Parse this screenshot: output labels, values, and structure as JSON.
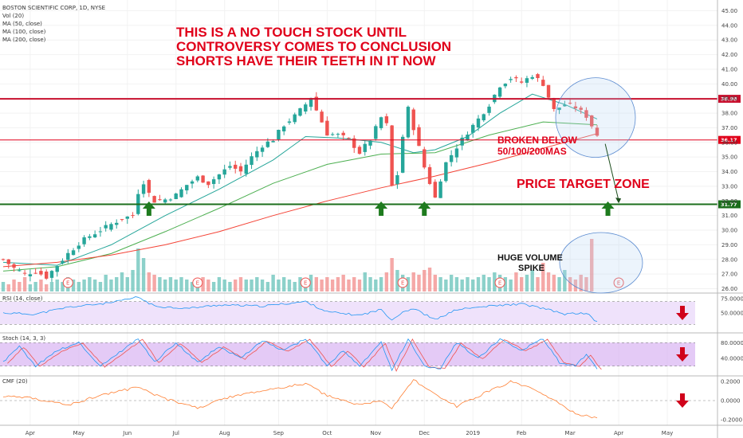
{
  "chart_data": {
    "type": "candlestick",
    "title": "BOSTON SCIENTIFIC CORP, 1D, NYSE",
    "indicators": [
      "Vol (20)",
      "MA (50, close)",
      "MA (100, close)",
      "MA (200, close)"
    ],
    "price_axis": {
      "ticks": [
        45.0,
        44.0,
        43.0,
        42.0,
        41.0,
        40.0,
        39.0,
        38.0,
        37.0,
        36.0,
        35.0,
        34.0,
        33.0,
        32.0,
        31.0,
        30.0,
        29.0,
        28.0,
        27.0,
        26.0
      ],
      "ylim": [
        25.7,
        45.3
      ]
    },
    "time_axis": [
      "Apr",
      "May",
      "Jun",
      "Jul",
      "Aug",
      "Sep",
      "Oct",
      "Nov",
      "Dec",
      "2019",
      "Feb",
      "Mar",
      "Apr",
      "May"
    ],
    "levels": [
      {
        "value": 38.98,
        "label": "38.98",
        "color": "#c8102e"
      },
      {
        "value": 36.17,
        "label": "36.17",
        "color": "#e0001a"
      },
      {
        "value": 31.77,
        "label": "31.77",
        "color": "#1b6e1b"
      }
    ],
    "price_path": [
      [
        0,
        28.0
      ],
      [
        2,
        27.4
      ],
      [
        4,
        27.0
      ],
      [
        6,
        27.2
      ],
      [
        8,
        26.8
      ],
      [
        10,
        27.6
      ],
      [
        12,
        28.4
      ],
      [
        14,
        29.1
      ],
      [
        16,
        29.6
      ],
      [
        18,
        30.0
      ],
      [
        20,
        30.4
      ],
      [
        22,
        30.8
      ],
      [
        24,
        31.0
      ],
      [
        25,
        32.6
      ],
      [
        26,
        33.3
      ],
      [
        27,
        32.5
      ],
      [
        28,
        32.0
      ],
      [
        30,
        32.1
      ],
      [
        32,
        32.4
      ],
      [
        34,
        33.1
      ],
      [
        36,
        33.6
      ],
      [
        38,
        33.2
      ],
      [
        40,
        33.8
      ],
      [
        42,
        34.4
      ],
      [
        44,
        34.0
      ],
      [
        46,
        35.0
      ],
      [
        48,
        35.8
      ],
      [
        50,
        36.2
      ],
      [
        52,
        37.2
      ],
      [
        54,
        37.8
      ],
      [
        56,
        38.6
      ],
      [
        57,
        39.1
      ],
      [
        58,
        38.2
      ],
      [
        59,
        37.4
      ],
      [
        60,
        36.6
      ],
      [
        62,
        36.5
      ],
      [
        64,
        36.2
      ],
      [
        66,
        35.3
      ],
      [
        68,
        36.2
      ],
      [
        70,
        37.7
      ],
      [
        71,
        37.2
      ],
      [
        72,
        33.0
      ],
      [
        73,
        33.8
      ],
      [
        74,
        36.4
      ],
      [
        75,
        38.3
      ],
      [
        76,
        37.0
      ],
      [
        78,
        34.3
      ],
      [
        80,
        32.2
      ],
      [
        81,
        33.5
      ],
      [
        82,
        34.6
      ],
      [
        84,
        35.7
      ],
      [
        86,
        36.7
      ],
      [
        88,
        37.6
      ],
      [
        90,
        38.6
      ],
      [
        92,
        39.9
      ],
      [
        94,
        40.4
      ],
      [
        96,
        40.1
      ],
      [
        98,
        40.6
      ],
      [
        100,
        40.0
      ],
      [
        102,
        38.2
      ],
      [
        104,
        38.6
      ],
      [
        106,
        38.4
      ],
      [
        108,
        37.8
      ],
      [
        110,
        36.5
      ]
    ],
    "ma_50": [
      [
        0,
        27.8
      ],
      [
        10,
        27.6
      ],
      [
        20,
        29.0
      ],
      [
        30,
        31.0
      ],
      [
        40,
        32.8
      ],
      [
        50,
        34.8
      ],
      [
        56,
        36.4
      ],
      [
        62,
        36.3
      ],
      [
        70,
        36.0
      ],
      [
        76,
        35.3
      ],
      [
        80,
        35.5
      ],
      [
        86,
        36.4
      ],
      [
        92,
        38.0
      ],
      [
        98,
        39.3
      ],
      [
        104,
        38.6
      ],
      [
        110,
        37.6
      ]
    ],
    "ma_100": [
      [
        0,
        27.2
      ],
      [
        10,
        27.5
      ],
      [
        20,
        28.4
      ],
      [
        30,
        29.9
      ],
      [
        40,
        31.5
      ],
      [
        50,
        33.2
      ],
      [
        60,
        34.5
      ],
      [
        70,
        35.2
      ],
      [
        80,
        35.3
      ],
      [
        90,
        36.5
      ],
      [
        100,
        37.4
      ],
      [
        110,
        37.2
      ]
    ],
    "ma_200": [
      [
        0,
        27.5
      ],
      [
        10,
        27.8
      ],
      [
        20,
        28.3
      ],
      [
        30,
        29.0
      ],
      [
        40,
        29.9
      ],
      [
        50,
        31.0
      ],
      [
        60,
        32.0
      ],
      [
        70,
        32.9
      ],
      [
        80,
        33.7
      ],
      [
        90,
        34.6
      ],
      [
        100,
        35.6
      ],
      [
        110,
        36.6
      ]
    ],
    "volume": [
      4,
      3,
      5,
      4,
      6,
      3,
      4,
      5,
      3,
      4,
      5,
      4,
      6,
      5,
      4,
      5,
      6,
      5,
      4,
      7,
      5,
      6,
      8,
      6,
      9,
      18,
      14,
      8,
      7,
      6,
      5,
      6,
      5,
      6,
      5,
      4,
      5,
      6,
      5,
      4,
      6,
      5,
      4,
      5,
      6,
      5,
      5,
      6,
      5,
      4,
      7,
      5,
      6,
      5,
      4,
      6,
      5,
      7,
      6,
      5,
      6,
      5,
      6,
      7,
      5,
      6,
      5,
      8,
      6,
      5,
      6,
      8,
      14,
      9,
      7,
      6,
      8,
      7,
      9,
      10,
      7,
      6,
      5,
      7,
      6,
      5,
      6,
      5,
      6,
      7,
      6,
      8,
      7,
      6,
      5,
      8,
      6,
      7,
      9,
      6,
      12,
      8,
      7,
      6,
      9,
      6,
      5,
      7,
      6,
      22
    ],
    "panels": [
      {
        "name": "RSI (14, close)",
        "ticks": [
          "75.0000",
          "50.0000"
        ],
        "ylim": [
          15,
          85
        ],
        "band": [
          30,
          70
        ],
        "values": [
          [
            0,
            50
          ],
          [
            6,
            48
          ],
          [
            12,
            60
          ],
          [
            20,
            68
          ],
          [
            25,
            78
          ],
          [
            28,
            62
          ],
          [
            34,
            58
          ],
          [
            40,
            64
          ],
          [
            48,
            62
          ],
          [
            56,
            70
          ],
          [
            60,
            52
          ],
          [
            66,
            46
          ],
          [
            70,
            56
          ],
          [
            72,
            38
          ],
          [
            74,
            52
          ],
          [
            76,
            58
          ],
          [
            80,
            38
          ],
          [
            84,
            56
          ],
          [
            90,
            62
          ],
          [
            96,
            66
          ],
          [
            100,
            58
          ],
          [
            104,
            48
          ],
          [
            108,
            50
          ],
          [
            110,
            34
          ]
        ]
      },
      {
        "name": "Stoch (14, 3, 3)",
        "ticks": [
          "80.0000",
          "40.0000"
        ],
        "ylim": [
          -5,
          105
        ],
        "band": [
          20,
          80
        ],
        "values": [
          [
            0,
            30
          ],
          [
            3,
            70
          ],
          [
            6,
            20
          ],
          [
            10,
            60
          ],
          [
            14,
            80
          ],
          [
            18,
            20
          ],
          [
            22,
            60
          ],
          [
            25,
            90
          ],
          [
            28,
            30
          ],
          [
            32,
            80
          ],
          [
            36,
            30
          ],
          [
            40,
            70
          ],
          [
            44,
            40
          ],
          [
            48,
            85
          ],
          [
            52,
            60
          ],
          [
            56,
            90
          ],
          [
            60,
            20
          ],
          [
            63,
            60
          ],
          [
            66,
            20
          ],
          [
            70,
            80
          ],
          [
            72,
            10
          ],
          [
            75,
            90
          ],
          [
            78,
            20
          ],
          [
            81,
            15
          ],
          [
            84,
            80
          ],
          [
            88,
            40
          ],
          [
            92,
            90
          ],
          [
            96,
            60
          ],
          [
            100,
            90
          ],
          [
            103,
            30
          ],
          [
            106,
            20
          ],
          [
            108,
            50
          ],
          [
            110,
            12
          ]
        ]
      },
      {
        "name": "CMF (20)",
        "ticks": [
          "0.2000",
          "0.0000",
          "-0.2000"
        ],
        "ylim": [
          -0.26,
          0.26
        ],
        "zero": 0,
        "values": [
          [
            0,
            0.05
          ],
          [
            6,
            0.02
          ],
          [
            12,
            -0.05
          ],
          [
            18,
            0.06
          ],
          [
            25,
            0.14
          ],
          [
            30,
            0.02
          ],
          [
            36,
            -0.08
          ],
          [
            42,
            0.04
          ],
          [
            48,
            0.1
          ],
          [
            56,
            0.18
          ],
          [
            60,
            0.05
          ],
          [
            66,
            -0.05
          ],
          [
            70,
            0.0
          ],
          [
            72,
            -0.08
          ],
          [
            76,
            0.22
          ],
          [
            80,
            0.06
          ],
          [
            84,
            -0.06
          ],
          [
            90,
            0.1
          ],
          [
            94,
            0.2
          ],
          [
            98,
            0.12
          ],
          [
            102,
            0.0
          ],
          [
            106,
            -0.14
          ],
          [
            110,
            -0.18
          ]
        ]
      }
    ],
    "arrow_points_up_at": [
      27,
      70,
      78,
      112
    ],
    "earnings_marks_at": [
      12,
      36,
      56,
      74,
      92,
      114
    ],
    "circles_at": [
      [
        110,
        "price"
      ],
      [
        110,
        "volume"
      ]
    ]
  },
  "annotations": {
    "headline_1": "THIS IS A NO TOUCH STOCK UNTIL",
    "headline_2": "CONTROVERSY COMES TO CONCLUSION",
    "headline_3": "SHORTS HAVE THEIR TEETH IN IT NOW",
    "broken_1": "BROKEN BELOW",
    "broken_2": "50/100/200MAS",
    "target": "PRICE TARGET ZONE",
    "volume_1": "HUGE VOLUME",
    "volume_2": "SPIKE",
    "earnings_letter": "E"
  },
  "colors": {
    "up": "#26a69a",
    "down": "#ef5350",
    "ma50": "#26a69a",
    "ma100": "#4caf50",
    "ma200": "#f44336",
    "vol_up": "#66c2b8",
    "vol_down": "#f28b89",
    "rsi": "#2196f3",
    "rsi_band": "#efe2fb",
    "stoch_k": "#2196f3",
    "stoch_d": "#ef5350",
    "stoch_band": "#d9b3f2",
    "cmf": "#ff7f32",
    "arrow_green": "#1e7b1e",
    "arrow_red": "#d0021b"
  }
}
